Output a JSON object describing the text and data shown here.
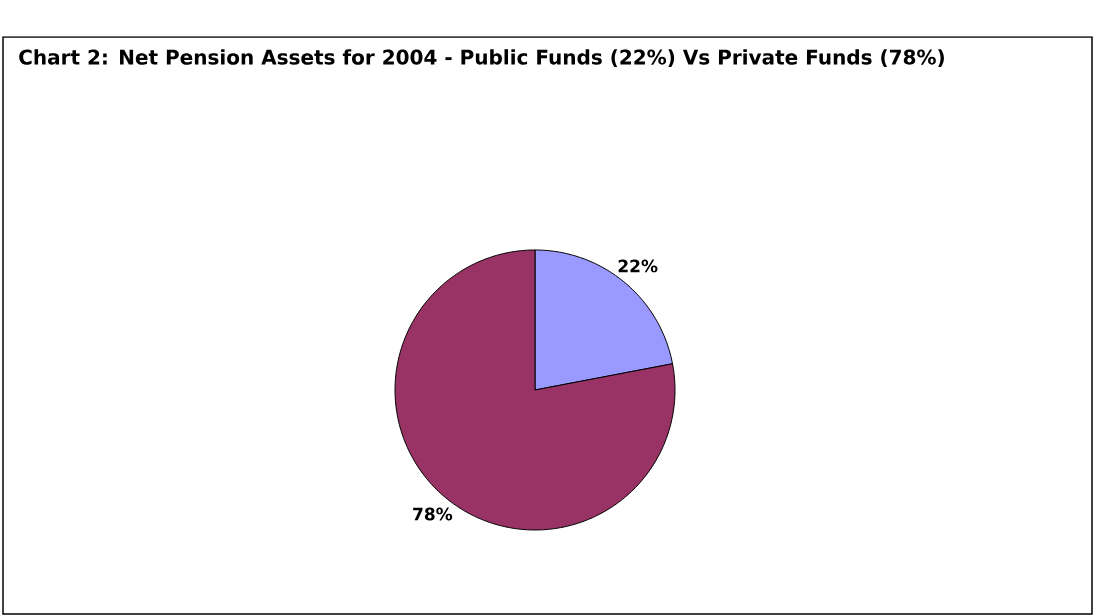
{
  "chart_data": {
    "type": "pie",
    "title": "Chart 2: Net Pension Assets for 2004 - Public Funds (22%) Vs Private Funds (78%)",
    "categories": [
      null,
      null
    ],
    "values": [
      22,
      78
    ],
    "colors": [
      "#9999ff",
      "#993366"
    ],
    "value_labels": [
      "22%",
      "78%"
    ]
  }
}
